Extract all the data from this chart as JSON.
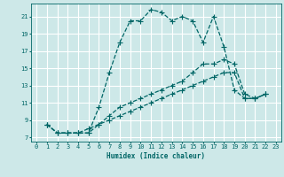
{
  "xlabel": "Humidex (Indice chaleur)",
  "background_color": "#cde8e8",
  "grid_color": "#ffffff",
  "line_color": "#006666",
  "xlim": [
    -0.5,
    23.5
  ],
  "ylim": [
    6.5,
    22.5
  ],
  "xticks": [
    0,
    1,
    2,
    3,
    4,
    5,
    6,
    7,
    8,
    9,
    10,
    11,
    12,
    13,
    14,
    15,
    16,
    17,
    18,
    19,
    20,
    21,
    22,
    23
  ],
  "yticks": [
    7,
    9,
    11,
    13,
    15,
    17,
    19,
    21
  ],
  "line1_x": [
    1,
    2,
    3,
    4,
    5,
    6,
    7,
    8,
    9,
    10,
    11,
    12,
    13,
    14,
    15,
    16,
    17,
    18,
    19,
    20,
    21,
    22
  ],
  "line1_y": [
    8.5,
    7.5,
    7.5,
    7.5,
    7.5,
    10.5,
    14.5,
    18.0,
    20.5,
    20.5,
    21.8,
    21.5,
    20.5,
    21.0,
    20.5,
    18.0,
    21.0,
    17.5,
    12.5,
    11.5,
    11.5,
    12.0
  ],
  "line2_x": [
    1,
    2,
    3,
    4,
    5,
    6,
    7,
    8,
    9,
    10,
    11,
    12,
    13,
    14,
    15,
    16,
    17,
    18,
    19,
    20,
    21,
    22
  ],
  "line2_y": [
    8.5,
    7.5,
    7.5,
    7.5,
    7.5,
    8.5,
    9.5,
    10.5,
    11.0,
    11.5,
    12.0,
    12.5,
    13.0,
    13.5,
    14.5,
    15.5,
    15.5,
    16.0,
    15.5,
    12.0,
    11.5,
    12.0
  ],
  "line3_x": [
    1,
    2,
    3,
    4,
    5,
    6,
    7,
    8,
    9,
    10,
    11,
    12,
    13,
    14,
    15,
    16,
    17,
    18,
    19,
    20,
    21,
    22
  ],
  "line3_y": [
    8.5,
    7.5,
    7.5,
    7.5,
    8.0,
    8.5,
    9.0,
    9.5,
    10.0,
    10.5,
    11.0,
    11.5,
    12.0,
    12.5,
    13.0,
    13.5,
    14.0,
    14.5,
    14.5,
    11.5,
    11.5,
    12.0
  ]
}
